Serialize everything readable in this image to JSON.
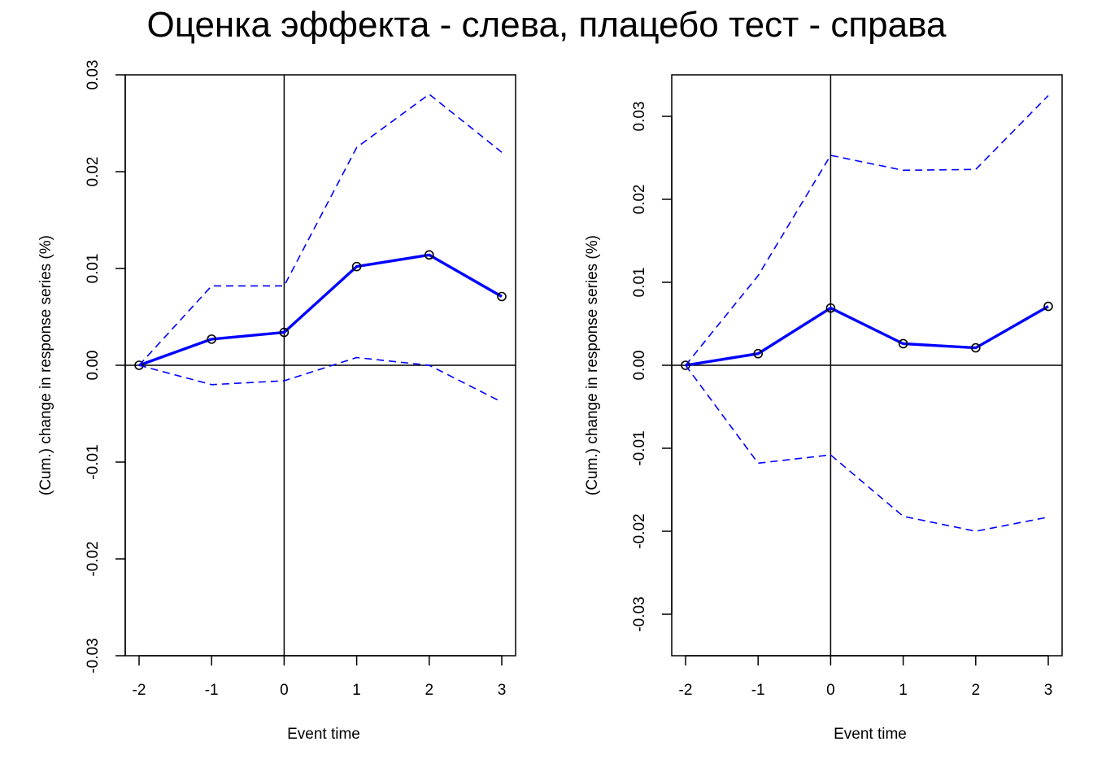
{
  "title": "Оценка эффекта - слева, плацебо тест - справа",
  "colors": {
    "series": "#0000ff",
    "axis": "#000000",
    "background": "#ffffff"
  },
  "chart_data": [
    {
      "type": "line",
      "xlabel": "Event time",
      "ylabel": "(Cum.) change in response series (%)",
      "x": [
        -2,
        -1,
        0,
        1,
        2,
        3
      ],
      "xticks": [
        "-2",
        "-1",
        "0",
        "1",
        "2",
        "3"
      ],
      "yticks": [
        "-0.03",
        "-0.02",
        "-0.01",
        "0.00",
        "0.01",
        "0.02",
        "0.03"
      ],
      "ylim": [
        -0.03,
        0.03
      ],
      "reference_lines": {
        "x": 0,
        "y": 0
      },
      "series": [
        {
          "role": "estimate",
          "style": "solid-with-points",
          "values": [
            0.0,
            0.0027,
            0.0034,
            0.0102,
            0.0114,
            0.0071
          ]
        },
        {
          "role": "upper-ci",
          "style": "dashed",
          "values": [
            0.0,
            0.0082,
            0.0082,
            0.0225,
            0.028,
            0.022
          ]
        },
        {
          "role": "lower-ci",
          "style": "dashed",
          "values": [
            0.0,
            -0.002,
            -0.0016,
            0.0008,
            0.0,
            -0.0038
          ]
        }
      ]
    },
    {
      "type": "line",
      "xlabel": "Event time",
      "ylabel": "(Cum.) change in response series (%)",
      "x": [
        -2,
        -1,
        0,
        1,
        2,
        3
      ],
      "xticks": [
        "-2",
        "-1",
        "0",
        "1",
        "2",
        "3"
      ],
      "yticks": [
        "-0.03",
        "-0.02",
        "-0.01",
        "0.00",
        "0.01",
        "0.02",
        "0.03"
      ],
      "ylim": [
        -0.035,
        0.035
      ],
      "reference_lines": {
        "x": 0,
        "y": 0
      },
      "series": [
        {
          "role": "estimate",
          "style": "solid-with-points",
          "values": [
            0.0,
            0.0014,
            0.0069,
            0.0026,
            0.0021,
            0.0071
          ]
        },
        {
          "role": "upper-ci",
          "style": "dashed",
          "values": [
            0.0,
            0.0108,
            0.0253,
            0.0235,
            0.0236,
            0.0325
          ]
        },
        {
          "role": "lower-ci",
          "style": "dashed",
          "values": [
            0.0,
            -0.0118,
            -0.0108,
            -0.0182,
            -0.02,
            -0.0183
          ]
        }
      ]
    }
  ]
}
